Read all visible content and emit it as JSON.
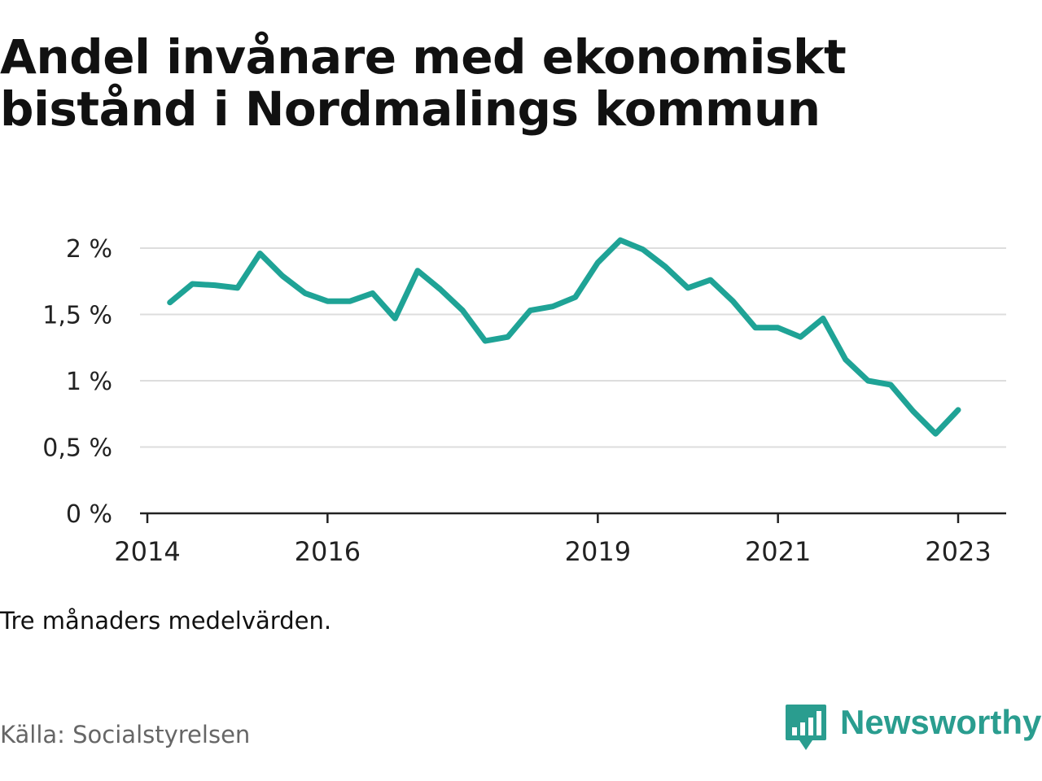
{
  "title": {
    "line1": "Andel invånare med ekonomiskt",
    "line2": "bistånd i Nordmalings kommun"
  },
  "note": "Tre månaders medelvärden.",
  "source": "Källa: Socialstyrelsen",
  "brand": {
    "name": "Newsworthy",
    "color": "#2a9d8f",
    "icon": "bar-chart-speech-bubble-icon"
  },
  "colors": {
    "line": "#1fa396",
    "grid": "#dddddd",
    "axis": "#222222",
    "text": "#111111",
    "muted": "#666666"
  },
  "chart_data": {
    "type": "line",
    "title": "Andel invånare med ekonomiskt bistånd i Nordmalings kommun",
    "xlabel": "",
    "ylabel": "",
    "ylim": [
      0,
      2.0
    ],
    "y_ticks": [
      {
        "value": 0,
        "label": "0 %"
      },
      {
        "value": 0.5,
        "label": "0,5 %"
      },
      {
        "value": 1.0,
        "label": "1 %"
      },
      {
        "value": 1.5,
        "label": "1,5 %"
      },
      {
        "value": 2.0,
        "label": "2 %"
      }
    ],
    "x_ticks": [
      {
        "value": "2014-01-01",
        "label": "2014"
      },
      {
        "value": "2016-01-01",
        "label": "2016"
      },
      {
        "value": "2019-01-01",
        "label": "2019"
      },
      {
        "value": "2021-01-01",
        "label": "2021"
      },
      {
        "value": "2023-01-01",
        "label": "2023"
      }
    ],
    "xlim": [
      "2014-01-01",
      "2023-06-01"
    ],
    "grid": true,
    "legend": "none",
    "series": [
      {
        "values": [
          {
            "x": "2014-04",
            "y": 1.59
          },
          {
            "x": "2014-07",
            "y": 1.73
          },
          {
            "x": "2014-10",
            "y": 1.72
          },
          {
            "x": "2015-01",
            "y": 1.7
          },
          {
            "x": "2015-04",
            "y": 1.96
          },
          {
            "x": "2015-07",
            "y": 1.79
          },
          {
            "x": "2015-10",
            "y": 1.66
          },
          {
            "x": "2016-01",
            "y": 1.6
          },
          {
            "x": "2016-04",
            "y": 1.6
          },
          {
            "x": "2016-07",
            "y": 1.66
          },
          {
            "x": "2016-10",
            "y": 1.47
          },
          {
            "x": "2017-01",
            "y": 1.83
          },
          {
            "x": "2017-04",
            "y": 1.69
          },
          {
            "x": "2017-07",
            "y": 1.53
          },
          {
            "x": "2017-10",
            "y": 1.3
          },
          {
            "x": "2018-01",
            "y": 1.33
          },
          {
            "x": "2018-04",
            "y": 1.53
          },
          {
            "x": "2018-07",
            "y": 1.56
          },
          {
            "x": "2018-10",
            "y": 1.63
          },
          {
            "x": "2019-01",
            "y": 1.89
          },
          {
            "x": "2019-04",
            "y": 2.06
          },
          {
            "x": "2019-07",
            "y": 1.99
          },
          {
            "x": "2019-10",
            "y": 1.86
          },
          {
            "x": "2020-01",
            "y": 1.7
          },
          {
            "x": "2020-04",
            "y": 1.76
          },
          {
            "x": "2020-07",
            "y": 1.6
          },
          {
            "x": "2020-10",
            "y": 1.4
          },
          {
            "x": "2021-01",
            "y": 1.4
          },
          {
            "x": "2021-04",
            "y": 1.33
          },
          {
            "x": "2021-07",
            "y": 1.47
          },
          {
            "x": "2021-10",
            "y": 1.16
          },
          {
            "x": "2022-01",
            "y": 1.0
          },
          {
            "x": "2022-04",
            "y": 0.97
          },
          {
            "x": "2022-07",
            "y": 0.77
          },
          {
            "x": "2022-10",
            "y": 0.6
          },
          {
            "x": "2023-01",
            "y": 0.78
          }
        ]
      }
    ]
  }
}
